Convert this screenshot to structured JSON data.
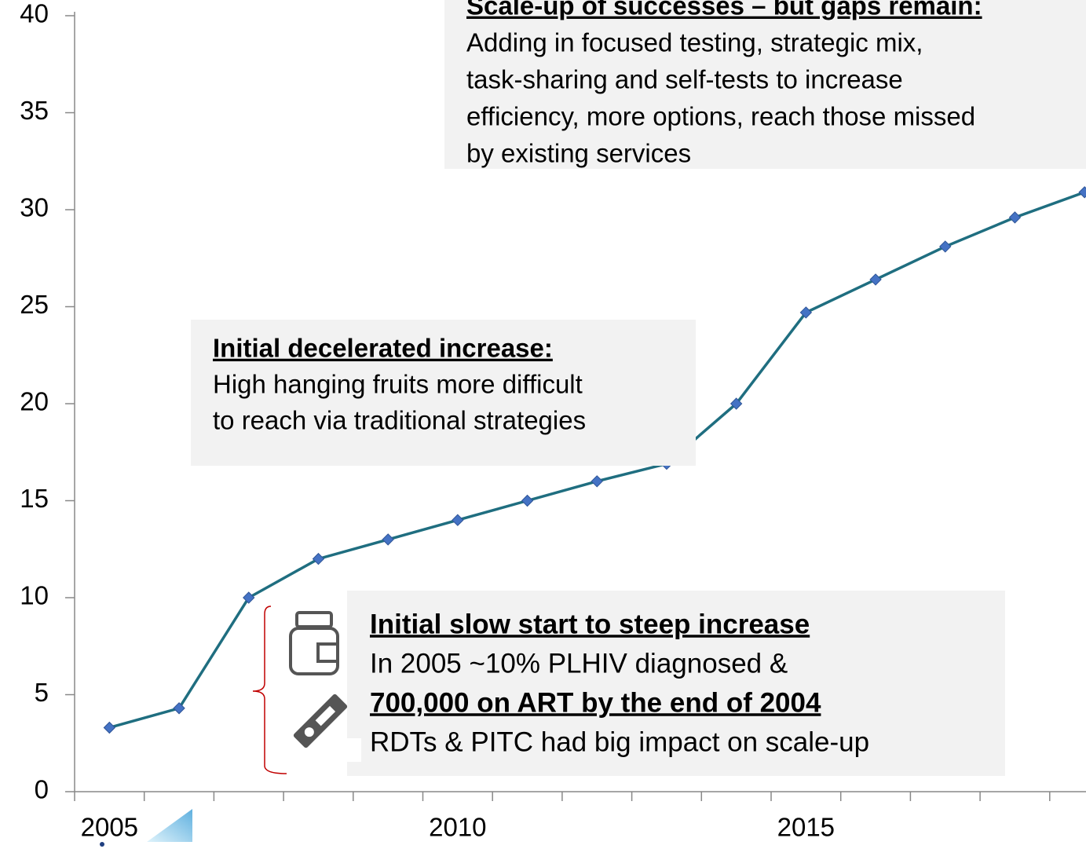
{
  "chart_data": {
    "type": "line",
    "categories": [
      "2005",
      null,
      null,
      null,
      null,
      "2010",
      null,
      null,
      null,
      null,
      "2015",
      null,
      null,
      null,
      null
    ],
    "values": [
      3.3,
      4.3,
      10,
      12,
      13,
      14,
      15,
      16,
      16.9,
      20,
      24.7,
      26.4,
      28.1,
      29.6,
      30.9
    ],
    "line_color": "#1f6e80",
    "marker_color": "#4472c4",
    "ylim": [
      0,
      40
    ],
    "yticks": [
      0,
      5,
      10,
      15,
      20,
      25,
      30,
      35,
      40
    ],
    "grid": false,
    "annotations": [
      {
        "lines": [
          {
            "text": "Scale-up of successes – but gaps remain:",
            "bold": true
          },
          {
            "text": "Adding in focused testing, strategic mix,",
            "bold": false
          },
          {
            "text": "task-sharing and self-tests to increase",
            "bold": false
          },
          {
            "text": "efficiency, more options, reach those missed",
            "bold": false
          },
          {
            "text": "by existing services",
            "bold": false
          }
        ]
      },
      {
        "lines": [
          {
            "text": "Initial decelerated increase:",
            "bold": true
          },
          {
            "text": "High hanging fruits more difficult",
            "bold": false
          },
          {
            "text": "to reach via traditional strategies",
            "bold": false
          }
        ]
      },
      {
        "lines": [
          {
            "text": "Initial slow start to steep increase",
            "bold": true
          },
          {
            "text": "In 2005 ~10% PLHIV diagnosed &",
            "bold": false
          },
          {
            "text": "700,000 on ART by the end of 2004",
            "bold": true
          },
          {
            "text": "RDTs & PITC had big impact on scale-up",
            "bold": false
          }
        ]
      }
    ]
  }
}
